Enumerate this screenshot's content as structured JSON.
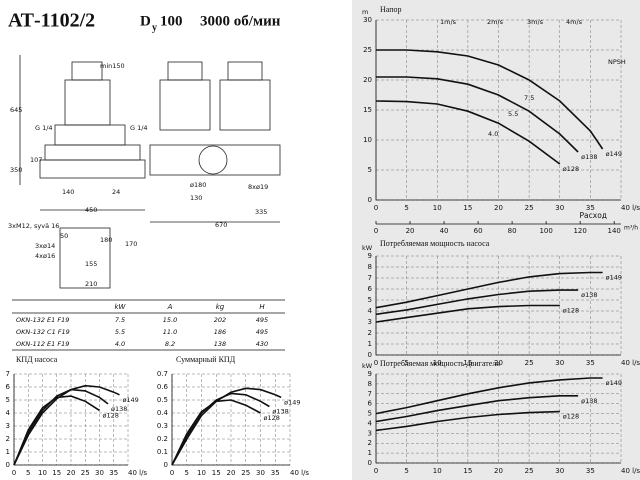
{
  "title": {
    "model": "АТ-1102/2",
    "d": "D",
    "sub": "у",
    "dn": "100",
    "speed": "3000 об/мин"
  },
  "drawing": {
    "labels": [
      "min150",
      "645",
      "350",
      "107",
      "G 1/4",
      "G 1/4",
      "140",
      "24",
      "450",
      "8xø19",
      "335",
      "670",
      "ø180",
      "130",
      "3xM12, syvä 16",
      "50",
      "3xø14",
      "4xø16",
      "155",
      "180",
      "170",
      "210"
    ]
  },
  "table": {
    "header": [
      "kW",
      "A",
      "kg",
      "H"
    ],
    "rows": [
      [
        "OKN-132 E1 F19",
        "7.5",
        "15.0",
        "202",
        "495"
      ],
      [
        "OKN-132 C1 F19",
        "5.5",
        "11.0",
        "186",
        "495"
      ],
      [
        "OKN-112 E1 F19",
        "4.0",
        "8.2",
        "138",
        "430"
      ]
    ]
  },
  "chart_data": [
    {
      "type": "line",
      "title": "Напор",
      "ylabel": "m",
      "xlim": [
        0,
        40
      ],
      "xticks": [
        0,
        5,
        10,
        15,
        20,
        25,
        30,
        35,
        {
          "value": 40,
          "label": "40 l/s"
        }
      ],
      "ylim": [
        0,
        30
      ],
      "yticks": [
        0,
        5,
        10,
        15,
        20,
        25,
        30
      ],
      "grid": true,
      "x2label": "Расход",
      "x2unit": "m³/h",
      "x2lim": [
        0,
        144
      ],
      "x2ticks": [
        0,
        20,
        40,
        60,
        80,
        100,
        120,
        140
      ],
      "annotations": [
        "1m/s",
        "2m/s",
        "3m/s",
        "4m/s",
        "4.0",
        "5.5",
        "7.5",
        "NPSH"
      ],
      "series": [
        {
          "name": "ø149",
          "color": "#111",
          "x": [
            0,
            5,
            10,
            15,
            20,
            25,
            30,
            35,
            37
          ],
          "values": [
            25,
            25,
            24.7,
            24,
            22.5,
            20,
            16.5,
            11.5,
            8.5
          ]
        },
        {
          "name": "ø138",
          "color": "#111",
          "x": [
            0,
            5,
            10,
            15,
            20,
            25,
            30,
            33
          ],
          "values": [
            20.5,
            20.5,
            20.2,
            19.3,
            17.5,
            14.8,
            11,
            8
          ]
        },
        {
          "name": "ø128",
          "color": "#111",
          "x": [
            0,
            5,
            10,
            15,
            20,
            25,
            30
          ],
          "values": [
            16.5,
            16.4,
            16,
            14.8,
            12.8,
            9.8,
            6
          ]
        }
      ]
    },
    {
      "type": "line",
      "title": "Потребляемая мощность насоса",
      "ylabel": "kW",
      "xlim": [
        0,
        40
      ],
      "xticks": [
        0,
        5,
        10,
        15,
        20,
        25,
        30,
        35,
        {
          "value": 40,
          "label": "40 l/s"
        }
      ],
      "ylim": [
        0,
        9
      ],
      "yticks": [
        0,
        1,
        2,
        3,
        4,
        5,
        6,
        7,
        8,
        9
      ],
      "grid": true,
      "series": [
        {
          "name": "ø149",
          "color": "#111",
          "x": [
            0,
            5,
            10,
            15,
            20,
            25,
            30,
            35,
            37
          ],
          "values": [
            4.3,
            4.8,
            5.4,
            6.0,
            6.6,
            7.1,
            7.4,
            7.5,
            7.5
          ]
        },
        {
          "name": "ø138",
          "color": "#111",
          "x": [
            0,
            5,
            10,
            15,
            20,
            25,
            30,
            33
          ],
          "values": [
            3.7,
            4.1,
            4.6,
            5.1,
            5.5,
            5.8,
            5.9,
            5.9
          ]
        },
        {
          "name": "ø128",
          "color": "#111",
          "x": [
            0,
            5,
            10,
            15,
            20,
            25,
            30
          ],
          "values": [
            3.0,
            3.4,
            3.8,
            4.2,
            4.4,
            4.5,
            4.5
          ]
        }
      ]
    },
    {
      "type": "line",
      "title": "Потребляемая мощность двигателя",
      "ylabel": "kW",
      "xlim": [
        0,
        40
      ],
      "xticks": [
        0,
        5,
        10,
        15,
        20,
        25,
        30,
        35,
        {
          "value": 40,
          "label": "40 l/s"
        }
      ],
      "ylim": [
        0,
        9
      ],
      "yticks": [
        0,
        1,
        2,
        3,
        4,
        5,
        6,
        7,
        8,
        9
      ],
      "grid": true,
      "series": [
        {
          "name": "ø149",
          "color": "#111",
          "x": [
            0,
            5,
            10,
            15,
            20,
            25,
            30,
            35,
            37
          ],
          "values": [
            5.0,
            5.6,
            6.3,
            7.0,
            7.6,
            8.1,
            8.4,
            8.6,
            8.6
          ]
        },
        {
          "name": "ø138",
          "color": "#111",
          "x": [
            0,
            5,
            10,
            15,
            20,
            25,
            30,
            33
          ],
          "values": [
            4.2,
            4.7,
            5.3,
            5.8,
            6.3,
            6.6,
            6.8,
            6.8
          ]
        },
        {
          "name": "ø128",
          "color": "#111",
          "x": [
            0,
            5,
            10,
            15,
            20,
            25,
            30
          ],
          "values": [
            3.3,
            3.7,
            4.2,
            4.6,
            4.9,
            5.1,
            5.2
          ]
        }
      ]
    },
    {
      "type": "line",
      "title": "КПД насоса",
      "xlim": [
        0,
        40
      ],
      "xticks": [
        0,
        5,
        10,
        15,
        20,
        25,
        30,
        35,
        {
          "value": 40,
          "label": "40 l/s"
        }
      ],
      "ylim": [
        0,
        7
      ],
      "yticks": [
        0,
        1,
        2,
        3,
        4,
        5,
        6,
        7
      ],
      "grid": true,
      "series": [
        {
          "name": "ø149",
          "color": "#111",
          "x": [
            0,
            5,
            10,
            15,
            20,
            25,
            30,
            35,
            37
          ],
          "values": [
            0,
            2.3,
            4.0,
            5.1,
            5.8,
            6.1,
            6.0,
            5.6,
            5.4
          ]
        },
        {
          "name": "ø138",
          "color": "#111",
          "x": [
            0,
            5,
            10,
            15,
            20,
            25,
            30,
            33
          ],
          "values": [
            0,
            2.5,
            4.2,
            5.3,
            5.8,
            5.7,
            5.2,
            4.7
          ]
        },
        {
          "name": "ø128",
          "color": "#111",
          "x": [
            0,
            5,
            10,
            15,
            20,
            25,
            30
          ],
          "values": [
            0,
            2.7,
            4.4,
            5.2,
            5.3,
            4.9,
            4.2
          ]
        }
      ]
    },
    {
      "type": "line",
      "title": "Суммарный КПД",
      "xlim": [
        0,
        40
      ],
      "xticks": [
        0,
        5,
        10,
        15,
        20,
        25,
        30,
        35,
        {
          "value": 40,
          "label": "40 l/s"
        }
      ],
      "ylim": [
        0,
        0.7
      ],
      "yticks": [
        0,
        0.1,
        0.2,
        0.3,
        0.4,
        0.5,
        0.6,
        0.7
      ],
      "grid": true,
      "series": [
        {
          "name": "ø149",
          "color": "#111",
          "x": [
            0,
            5,
            10,
            15,
            20,
            25,
            30,
            35,
            37
          ],
          "values": [
            0,
            0.2,
            0.38,
            0.49,
            0.56,
            0.59,
            0.58,
            0.54,
            0.52
          ]
        },
        {
          "name": "ø138",
          "color": "#111",
          "x": [
            0,
            5,
            10,
            15,
            20,
            25,
            30,
            33
          ],
          "values": [
            0,
            0.22,
            0.4,
            0.5,
            0.55,
            0.54,
            0.49,
            0.45
          ]
        },
        {
          "name": "ø128",
          "color": "#111",
          "x": [
            0,
            5,
            10,
            15,
            20,
            25,
            30
          ],
          "values": [
            0,
            0.24,
            0.41,
            0.49,
            0.5,
            0.46,
            0.4
          ]
        }
      ]
    }
  ]
}
